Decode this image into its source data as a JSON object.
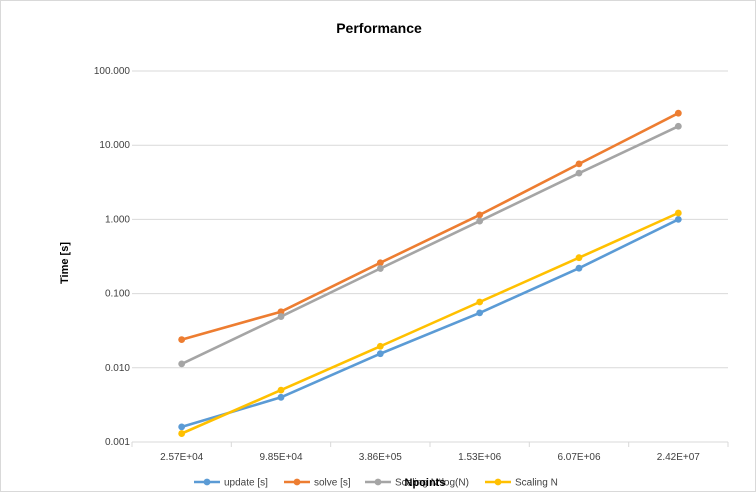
{
  "chart_data": {
    "type": "line",
    "title": "Performance",
    "xlabel": "Npoints",
    "ylabel": "Time [s]",
    "yscale": "log",
    "ylim": [
      0.001,
      100
    ],
    "yticks": [
      "0.001",
      "0.010",
      "0.100",
      "1.000",
      "10.000",
      "100.000"
    ],
    "categories": [
      "2.57E+04",
      "9.85E+04",
      "3.86E+05",
      "1.53E+06",
      "6.07E+06",
      "2.42E+07"
    ],
    "grid": true,
    "legend_position": "bottom",
    "series": [
      {
        "name": "update [s]",
        "color": "#5b9bd5",
        "values": [
          0.0016,
          0.004,
          0.0155,
          0.055,
          0.22,
          1.0
        ]
      },
      {
        "name": "solve [s]",
        "color": "#ed7d31",
        "values": [
          0.024,
          0.057,
          0.26,
          1.15,
          5.6,
          27.0
        ]
      },
      {
        "name": "Scaling N*log(N)",
        "color": "#a5a5a5",
        "values": [
          0.0113,
          0.049,
          0.218,
          0.95,
          4.2,
          18.0
        ]
      },
      {
        "name": "Scaling N",
        "color": "#ffc000",
        "values": [
          0.0013,
          0.005,
          0.0195,
          0.077,
          0.305,
          1.22
        ]
      }
    ]
  }
}
